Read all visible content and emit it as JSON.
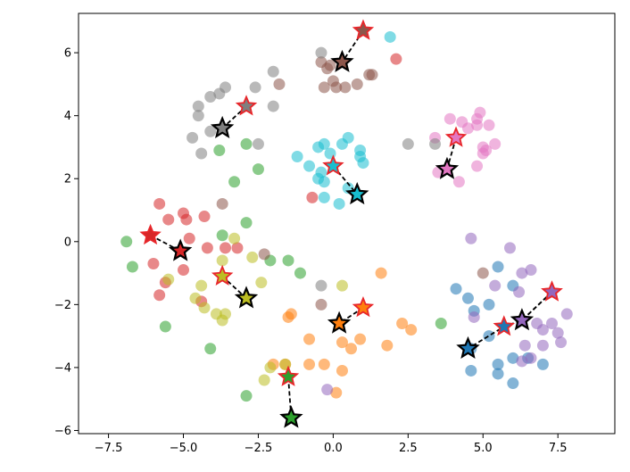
{
  "chart_data": {
    "type": "scatter",
    "title": "",
    "xlabel": "",
    "ylabel": "",
    "xlim": [
      -8.5,
      9.4
    ],
    "ylim": [
      -6.1,
      7.25
    ],
    "grid": false,
    "legend": "none",
    "x_ticks": [
      -7.5,
      -5.0,
      -2.5,
      0.0,
      2.5,
      5.0,
      7.5
    ],
    "x_tick_labels": [
      "−7.5",
      "−5.0",
      "−2.5",
      "0.0",
      "2.5",
      "5.0",
      "7.5"
    ],
    "y_ticks": [
      -6,
      -4,
      -2,
      0,
      2,
      4,
      6
    ],
    "y_tick_labels": [
      "−6",
      "−4",
      "−2",
      "0",
      "2",
      "4",
      "6"
    ],
    "series": [
      {
        "color": "#1f77b4",
        "points": [
          [
            4.1,
            -1.5
          ],
          [
            4.5,
            -1.8
          ],
          [
            4.7,
            -2.2
          ],
          [
            5.2,
            -2.0
          ],
          [
            5.5,
            -0.8
          ],
          [
            6.0,
            -1.4
          ],
          [
            4.6,
            -4.1
          ],
          [
            5.5,
            -4.2
          ],
          [
            5.5,
            -3.9
          ],
          [
            6.0,
            -3.7
          ],
          [
            6.0,
            -4.5
          ],
          [
            6.5,
            -3.7
          ],
          [
            7.0,
            -3.9
          ],
          [
            5.2,
            -3.0
          ],
          [
            4.6,
            -3.4
          ]
        ]
      },
      {
        "color": "#ff7f0e",
        "points": [
          [
            -1.5,
            -2.4
          ],
          [
            -1.4,
            -2.3
          ],
          [
            -0.8,
            -3.1
          ],
          [
            -1.6,
            -3.9
          ],
          [
            -2.0,
            -3.9
          ],
          [
            -0.8,
            -3.9
          ],
          [
            -0.3,
            -3.9
          ],
          [
            0.3,
            -4.1
          ],
          [
            0.3,
            -3.2
          ],
          [
            0.6,
            -3.4
          ],
          [
            0.1,
            -4.8
          ],
          [
            2.3,
            -2.6
          ],
          [
            2.6,
            -2.8
          ],
          [
            1.6,
            -1.0
          ],
          [
            1.8,
            -3.3
          ],
          [
            0.9,
            -3.1
          ]
        ]
      },
      {
        "color": "#2ca02c",
        "points": [
          [
            -6.9,
            0.0
          ],
          [
            -6.7,
            -0.8
          ],
          [
            -5.6,
            -2.7
          ],
          [
            -3.7,
            0.2
          ],
          [
            -3.3,
            1.9
          ],
          [
            -2.9,
            3.1
          ],
          [
            -2.9,
            0.6
          ],
          [
            -2.5,
            2.3
          ],
          [
            -2.1,
            -0.6
          ],
          [
            -1.5,
            -0.6
          ],
          [
            -1.1,
            -1.0
          ],
          [
            -2.9,
            -4.9
          ],
          [
            -4.1,
            -3.4
          ],
          [
            -3.8,
            2.9
          ],
          [
            3.6,
            -2.6
          ]
        ]
      },
      {
        "color": "#d62728",
        "points": [
          [
            -5.8,
            1.2
          ],
          [
            -5.5,
            0.7
          ],
          [
            -5.0,
            0.9
          ],
          [
            -4.9,
            0.7
          ],
          [
            -4.3,
            0.8
          ],
          [
            -4.8,
            0.1
          ],
          [
            -4.2,
            -0.2
          ],
          [
            -3.6,
            -0.2
          ],
          [
            -3.2,
            -0.2
          ],
          [
            -5.0,
            -0.9
          ],
          [
            -5.6,
            -1.3
          ],
          [
            -5.8,
            -1.7
          ],
          [
            -6.0,
            -0.7
          ],
          [
            -4.4,
            -1.9
          ],
          [
            -0.7,
            1.4
          ],
          [
            2.1,
            5.8
          ]
        ]
      },
      {
        "color": "#9467bd",
        "points": [
          [
            4.6,
            0.1
          ],
          [
            5.4,
            -1.4
          ],
          [
            5.9,
            -0.2
          ],
          [
            6.3,
            -1.0
          ],
          [
            6.6,
            -0.9
          ],
          [
            6.2,
            -1.6
          ],
          [
            6.8,
            -2.6
          ],
          [
            7.0,
            -2.8
          ],
          [
            7.3,
            -2.6
          ],
          [
            7.8,
            -2.3
          ],
          [
            7.5,
            -2.9
          ],
          [
            7.6,
            -3.2
          ],
          [
            7.0,
            -3.3
          ],
          [
            6.6,
            -3.7
          ],
          [
            6.3,
            -3.8
          ],
          [
            6.4,
            -3.3
          ],
          [
            4.7,
            -2.4
          ],
          [
            -0.2,
            -4.7
          ]
        ]
      },
      {
        "color": "#8c564b",
        "points": [
          [
            -1.8,
            5.0
          ],
          [
            -0.4,
            5.7
          ],
          [
            -0.1,
            5.6
          ],
          [
            -0.2,
            5.5
          ],
          [
            0.0,
            5.1
          ],
          [
            0.1,
            4.9
          ],
          [
            0.4,
            4.9
          ],
          [
            0.8,
            5.0
          ],
          [
            1.2,
            5.3
          ],
          [
            1.3,
            5.3
          ],
          [
            -0.3,
            4.9
          ],
          [
            -3.7,
            1.2
          ],
          [
            -2.3,
            -0.4
          ],
          [
            -0.4,
            -2.0
          ],
          [
            5.0,
            -1.0
          ]
        ]
      },
      {
        "color": "#e377c2",
        "points": [
          [
            3.4,
            3.3
          ],
          [
            3.9,
            3.9
          ],
          [
            4.3,
            3.8
          ],
          [
            4.5,
            3.6
          ],
          [
            4.8,
            3.9
          ],
          [
            4.8,
            3.7
          ],
          [
            5.0,
            3.0
          ],
          [
            5.1,
            2.9
          ],
          [
            5.0,
            2.8
          ],
          [
            5.4,
            3.1
          ],
          [
            4.8,
            2.4
          ],
          [
            3.5,
            2.2
          ],
          [
            4.2,
            1.9
          ],
          [
            5.2,
            3.7
          ],
          [
            4.9,
            4.1
          ]
        ]
      },
      {
        "color": "#7f7f7f",
        "points": [
          [
            -2.6,
            4.9
          ],
          [
            -3.6,
            4.9
          ],
          [
            -3.8,
            4.7
          ],
          [
            -4.1,
            4.6
          ],
          [
            -4.5,
            4.3
          ],
          [
            -4.5,
            4.0
          ],
          [
            -4.7,
            3.3
          ],
          [
            -4.1,
            3.5
          ],
          [
            -2.0,
            5.4
          ],
          [
            -2.0,
            4.3
          ],
          [
            -2.5,
            3.1
          ],
          [
            -4.4,
            2.8
          ],
          [
            -0.4,
            6.0
          ],
          [
            -0.4,
            -1.4
          ],
          [
            2.5,
            3.1
          ],
          [
            3.4,
            3.1
          ]
        ]
      },
      {
        "color": "#bcbd22",
        "points": [
          [
            -5.5,
            -1.2
          ],
          [
            -4.6,
            -1.8
          ],
          [
            -4.4,
            -1.4
          ],
          [
            -4.3,
            -2.1
          ],
          [
            -3.9,
            -2.3
          ],
          [
            -3.7,
            -2.5
          ],
          [
            -3.6,
            -2.3
          ],
          [
            -3.3,
            0.1
          ],
          [
            -3.7,
            -0.6
          ],
          [
            -2.7,
            -0.5
          ],
          [
            -2.4,
            -1.3
          ],
          [
            -2.3,
            -4.4
          ],
          [
            -2.1,
            -4.0
          ],
          [
            -1.6,
            -3.9
          ],
          [
            0.3,
            -1.4
          ]
        ]
      },
      {
        "color": "#17becf",
        "points": [
          [
            -1.2,
            2.7
          ],
          [
            -0.8,
            2.4
          ],
          [
            -0.5,
            3.0
          ],
          [
            -0.3,
            3.1
          ],
          [
            -0.1,
            2.8
          ],
          [
            -0.4,
            2.2
          ],
          [
            -0.5,
            2.0
          ],
          [
            -0.3,
            1.9
          ],
          [
            0.3,
            3.1
          ],
          [
            0.5,
            3.3
          ],
          [
            0.9,
            2.9
          ],
          [
            0.9,
            2.7
          ],
          [
            1.0,
            2.5
          ],
          [
            0.5,
            1.7
          ],
          [
            0.2,
            1.2
          ],
          [
            -0.3,
            1.4
          ],
          [
            1.9,
            6.5
          ]
        ]
      }
    ],
    "centroid_paths": [
      {
        "color": "#1f77b4",
        "path": [
          [
            7.3,
            -1.6
          ],
          [
            6.3,
            -2.5
          ],
          [
            5.7,
            -2.7
          ],
          [
            4.5,
            -3.4
          ]
        ]
      },
      {
        "color": "#ff7f0e",
        "path": [
          [
            1.0,
            -2.1
          ],
          [
            0.2,
            -2.6
          ]
        ]
      },
      {
        "color": "#2ca02c",
        "path": [
          [
            -1.5,
            -4.3
          ],
          [
            -1.4,
            -5.6
          ]
        ]
      },
      {
        "color": "#d62728",
        "path": [
          [
            -6.1,
            0.2
          ],
          [
            -5.1,
            -0.3
          ]
        ]
      },
      {
        "color": "#9467bd",
        "path": [
          [
            7.3,
            -1.6
          ],
          [
            6.3,
            -2.5
          ]
        ]
      },
      {
        "color": "#8c564b",
        "path": [
          [
            1.0,
            6.7
          ],
          [
            0.3,
            5.7
          ]
        ]
      },
      {
        "color": "#e377c2",
        "path": [
          [
            4.1,
            3.3
          ],
          [
            3.8,
            2.3
          ]
        ]
      },
      {
        "color": "#7f7f7f",
        "path": [
          [
            -2.9,
            4.3
          ],
          [
            -3.7,
            3.6
          ]
        ]
      },
      {
        "color": "#bcbd22",
        "path": [
          [
            -3.7,
            -1.1
          ],
          [
            -2.9,
            -1.8
          ]
        ]
      },
      {
        "color": "#17becf",
        "path": [
          [
            0.0,
            2.4
          ],
          [
            0.8,
            1.5
          ]
        ]
      }
    ]
  }
}
